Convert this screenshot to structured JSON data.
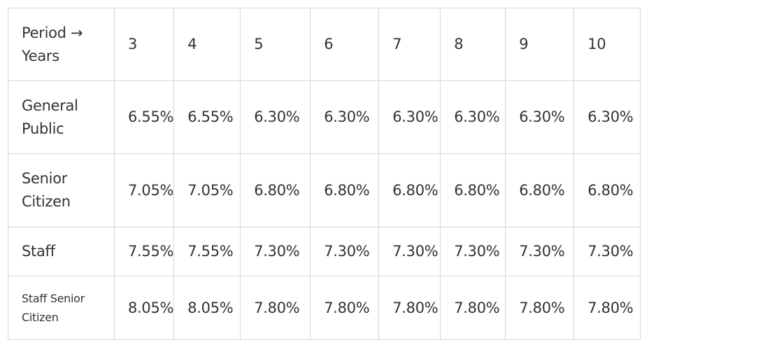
{
  "table": {
    "header": {
      "label_line1": "Period →",
      "label_line2": "Years",
      "periods": [
        "3",
        "4",
        "5",
        "6",
        "7",
        "8",
        "9",
        "10"
      ]
    },
    "rows": [
      {
        "label_line1": "General",
        "label_line2": "Public",
        "values": [
          "6.55%",
          "6.55%",
          "6.30%",
          "6.30%",
          "6.30%",
          "6.30%",
          "6.30%",
          "6.30%"
        ]
      },
      {
        "label_line1": "Senior",
        "label_line2": "Citizen",
        "values": [
          "7.05%",
          "7.05%",
          "6.80%",
          "6.80%",
          "6.80%",
          "6.80%",
          "6.80%",
          "6.80%"
        ]
      },
      {
        "label_line1": "Staff",
        "values": [
          "7.55%",
          "7.55%",
          "7.30%",
          "7.30%",
          "7.30%",
          "7.30%",
          "7.30%",
          "7.30%"
        ]
      },
      {
        "label_line1": "Staff Senior",
        "label_line2": "Citizen",
        "values": [
          "8.05%",
          "8.05%",
          "7.80%",
          "7.80%",
          "7.80%",
          "7.80%",
          "7.80%",
          "7.80%"
        ]
      }
    ]
  }
}
